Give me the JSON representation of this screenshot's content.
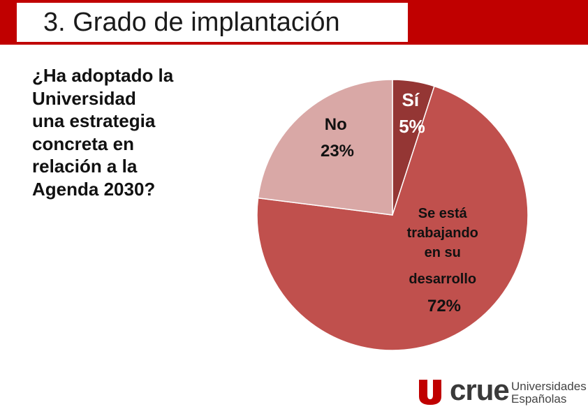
{
  "header": {
    "title": "3. Grado de implantación"
  },
  "question": {
    "lines": [
      "¿Ha adoptado la",
      "Universidad",
      "una estrategia",
      "concreta en",
      "relación a la",
      "Agenda 2030?"
    ]
  },
  "chart_data": {
    "type": "pie",
    "title": "",
    "slices": [
      {
        "label": "Sí",
        "value": 5,
        "pct_label": "5%",
        "color": "#943634"
      },
      {
        "label": "Se está trabajando en su desarrollo",
        "value": 72,
        "pct_label": "72%",
        "color": "#c0504d"
      },
      {
        "label": "No",
        "value": 23,
        "pct_label": "23%",
        "color": "#d9a8a6"
      }
    ],
    "label_lines": {
      "si": [
        "Sí",
        "5%"
      ],
      "trabajando": [
        "Se está",
        "trabajando",
        "en su",
        "desarrollo",
        "72%"
      ],
      "no": [
        "No",
        "23%"
      ]
    }
  },
  "logo": {
    "name": "crue",
    "subtitle_line1": "Universidades",
    "subtitle_line2": "Españolas",
    "mark_color": "#c00000"
  }
}
